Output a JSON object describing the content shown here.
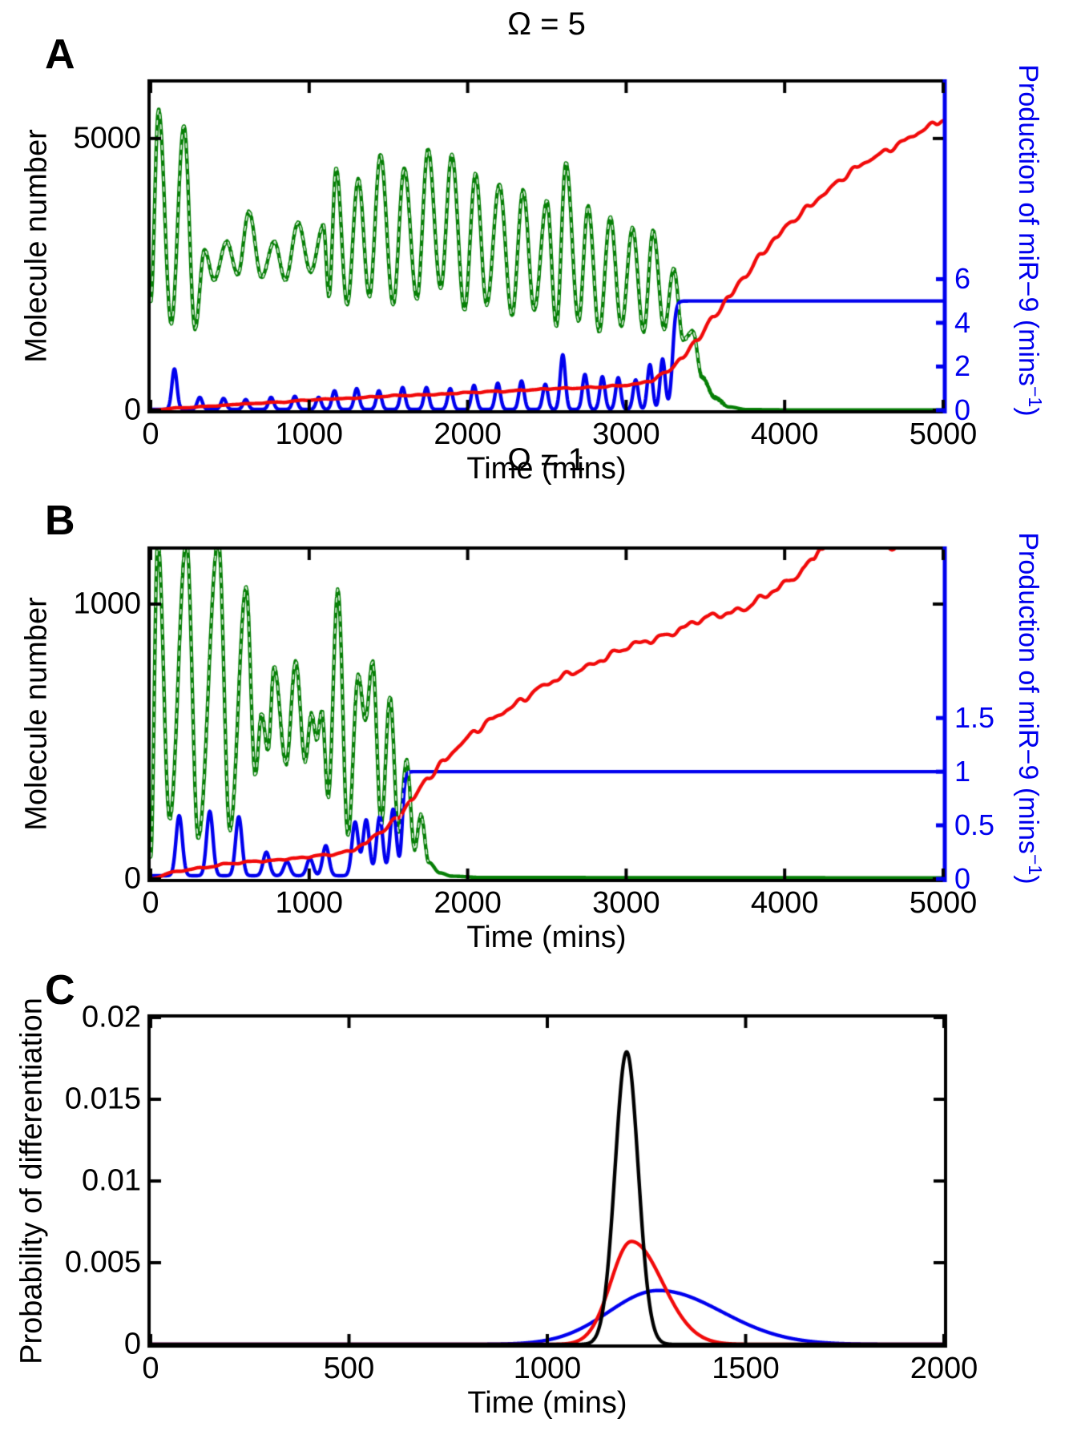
{
  "figure": {
    "titles": {
      "panel_a": "Ω = 5",
      "panel_b": "Ω = 1"
    },
    "panel_letters": {
      "a": "A",
      "b": "B",
      "c": "C"
    },
    "axis_labels": {
      "time": "Time (mins)",
      "molecule_number": "Molecule number",
      "probability": "Probability of differentiation",
      "mir9_base": "Production of miR−9 (mins",
      "mir9_sup": "−1",
      "mir9_close": ")"
    },
    "colors": {
      "green": "#067f06",
      "blue": "#0000ee",
      "red": "#f10a0a",
      "black": "#000000",
      "axis_black": "#000000",
      "right_axis_blue": "#0000ee"
    }
  },
  "chart_data": [
    {
      "id": "A",
      "type": "line",
      "title": "Ω = 5",
      "xlabel": "Time (mins)",
      "ylabel_left": "Molecule number",
      "ylabel_right": "Production of miR−9 (mins−1)",
      "xlim": [
        0,
        5000
      ],
      "ylim_left": [
        0,
        6030
      ],
      "ylim_right": [
        0,
        15
      ],
      "x_ticks": [
        {
          "v": 0,
          "label": "0"
        },
        {
          "v": 1000,
          "label": "1000"
        },
        {
          "v": 2000,
          "label": "2000"
        },
        {
          "v": 3000,
          "label": "3000"
        },
        {
          "v": 4000,
          "label": "4000"
        },
        {
          "v": 5000,
          "label": "5000"
        }
      ],
      "y_ticks_left": [
        {
          "v": 5000,
          "label": "5000"
        },
        {
          "v": 0,
          "label": "0"
        }
      ],
      "y_ticks_right": [
        {
          "v": 6,
          "label": "6"
        },
        {
          "v": 4,
          "label": "4"
        },
        {
          "v": 2,
          "label": "2"
        },
        {
          "v": 0,
          "label": "0"
        }
      ],
      "series": [
        {
          "name": "green",
          "color": "green",
          "axis": "left",
          "style": "smooth",
          "dash_overlay_until": 3470,
          "noise": 20,
          "points": [
            [
              0,
              2000
            ],
            [
              50,
              5530
            ],
            [
              130,
              1600
            ],
            [
              210,
              5230
            ],
            [
              280,
              1500
            ],
            [
              340,
              2950
            ],
            [
              400,
              2400
            ],
            [
              480,
              3100
            ],
            [
              550,
              2500
            ],
            [
              620,
              3650
            ],
            [
              700,
              2450
            ],
            [
              780,
              3100
            ],
            [
              850,
              2400
            ],
            [
              930,
              3450
            ],
            [
              1010,
              2550
            ],
            [
              1090,
              3400
            ],
            [
              1125,
              2100
            ],
            [
              1170,
              4450
            ],
            [
              1240,
              1950
            ],
            [
              1310,
              4250
            ],
            [
              1380,
              2100
            ],
            [
              1450,
              4700
            ],
            [
              1530,
              1950
            ],
            [
              1600,
              4450
            ],
            [
              1680,
              2050
            ],
            [
              1750,
              4800
            ],
            [
              1830,
              2250
            ],
            [
              1900,
              4700
            ],
            [
              1980,
              1850
            ],
            [
              2050,
              4350
            ],
            [
              2120,
              1950
            ],
            [
              2200,
              4150
            ],
            [
              2280,
              1750
            ],
            [
              2350,
              4050
            ],
            [
              2420,
              1850
            ],
            [
              2500,
              3850
            ],
            [
              2560,
              1550
            ],
            [
              2620,
              4550
            ],
            [
              2700,
              1650
            ],
            [
              2760,
              3750
            ],
            [
              2830,
              1450
            ],
            [
              2900,
              3550
            ],
            [
              2970,
              1550
            ],
            [
              3040,
              3350
            ],
            [
              3110,
              1450
            ],
            [
              3170,
              3300
            ],
            [
              3240,
              1500
            ],
            [
              3300,
              2600
            ],
            [
              3360,
              1300
            ],
            [
              3420,
              1450
            ],
            [
              3480,
              600
            ],
            [
              3560,
              230
            ],
            [
              3650,
              60
            ],
            [
              3760,
              12
            ],
            [
              4000,
              6
            ],
            [
              5000,
              5
            ]
          ]
        },
        {
          "name": "blue",
          "color": "blue",
          "axis": "right",
          "style": "spikes_step",
          "baseline": 0.04,
          "spike_sigma": 16,
          "spikes": [
            [
              150,
              1.85
            ],
            [
              310,
              0.55
            ],
            [
              460,
              0.5
            ],
            [
              600,
              0.45
            ],
            [
              760,
              0.55
            ],
            [
              910,
              0.6
            ],
            [
              1060,
              0.55
            ],
            [
              1160,
              0.85
            ],
            [
              1300,
              0.95
            ],
            [
              1440,
              0.85
            ],
            [
              1590,
              1.0
            ],
            [
              1740,
              1.0
            ],
            [
              1890,
              0.95
            ],
            [
              2040,
              1.1
            ],
            [
              2190,
              1.2
            ],
            [
              2340,
              1.3
            ],
            [
              2490,
              1.15
            ],
            [
              2600,
              2.5
            ],
            [
              2740,
              1.6
            ],
            [
              2850,
              1.5
            ],
            [
              2950,
              1.45
            ],
            [
              3060,
              1.35
            ],
            [
              3150,
              2.05
            ],
            [
              3230,
              2.3
            ]
          ],
          "step": {
            "center": 3293,
            "k": 0.1,
            "plateau": 5
          }
        },
        {
          "name": "red",
          "color": "red",
          "axis": "left",
          "style": "smooth",
          "jitter": 30,
          "points": [
            [
              0,
              0
            ],
            [
              200,
              45
            ],
            [
              400,
              80
            ],
            [
              600,
              115
            ],
            [
              800,
              150
            ],
            [
              1000,
              185
            ],
            [
              1200,
              215
            ],
            [
              1400,
              245
            ],
            [
              1600,
              270
            ],
            [
              1800,
              295
            ],
            [
              2000,
              320
            ],
            [
              2200,
              350
            ],
            [
              2400,
              375
            ],
            [
              2600,
              400
            ],
            [
              2800,
              425
            ],
            [
              2950,
              445
            ],
            [
              3050,
              470
            ],
            [
              3150,
              540
            ],
            [
              3250,
              700
            ],
            [
              3350,
              950
            ],
            [
              3450,
              1300
            ],
            [
              3550,
              1700
            ],
            [
              3650,
              2100
            ],
            [
              3750,
              2480
            ],
            [
              3850,
              2850
            ],
            [
              3950,
              3180
            ],
            [
              4050,
              3480
            ],
            [
              4150,
              3750
            ],
            [
              4250,
              4000
            ],
            [
              4350,
              4230
            ],
            [
              4450,
              4440
            ],
            [
              4550,
              4630
            ],
            [
              4650,
              4800
            ],
            [
              4750,
              4960
            ],
            [
              4850,
              5110
            ],
            [
              4950,
              5260
            ],
            [
              5000,
              5330
            ]
          ]
        }
      ]
    },
    {
      "id": "B",
      "type": "line",
      "title": "Ω = 1",
      "xlabel": "Time (mins)",
      "ylabel_left": "Molecule number",
      "ylabel_right": "Production of miR−9 (mins−1)",
      "xlim": [
        0,
        5000
      ],
      "ylim_left": [
        0,
        1198
      ],
      "ylim_right": [
        0,
        3.07
      ],
      "x_ticks": [
        {
          "v": 0,
          "label": "0"
        },
        {
          "v": 1000,
          "label": "1000"
        },
        {
          "v": 2000,
          "label": "2000"
        },
        {
          "v": 3000,
          "label": "3000"
        },
        {
          "v": 4000,
          "label": "4000"
        },
        {
          "v": 5000,
          "label": "5000"
        }
      ],
      "y_ticks_left": [
        {
          "v": 1000,
          "label": "1000"
        },
        {
          "v": 0,
          "label": "0"
        }
      ],
      "y_ticks_right": [
        {
          "v": 1.5,
          "label": "1.5"
        },
        {
          "v": 1,
          "label": "1"
        },
        {
          "v": 0.5,
          "label": "0.5"
        },
        {
          "v": 0,
          "label": "0"
        }
      ],
      "series": [
        {
          "name": "green",
          "color": "green",
          "axis": "left",
          "style": "smooth",
          "dash_overlay_until": 1750,
          "noise": 7,
          "points": [
            [
              0,
              80
            ],
            [
              45,
              1230
            ],
            [
              120,
              220
            ],
            [
              226,
              1230
            ],
            [
              300,
              150
            ],
            [
              427,
              1230
            ],
            [
              500,
              180
            ],
            [
              603,
              1060
            ],
            [
              660,
              380
            ],
            [
              700,
              600
            ],
            [
              740,
              470
            ],
            [
              779,
              770
            ],
            [
              855,
              420
            ],
            [
              915,
              790
            ],
            [
              975,
              430
            ],
            [
              1015,
              600
            ],
            [
              1048,
              510
            ],
            [
              1080,
              610
            ],
            [
              1120,
              300
            ],
            [
              1181,
              1050
            ],
            [
              1245,
              160
            ],
            [
              1310,
              740
            ],
            [
              1355,
              580
            ],
            [
              1400,
              790
            ],
            [
              1455,
              200
            ],
            [
              1510,
              660
            ],
            [
              1565,
              170
            ],
            [
              1615,
              430
            ],
            [
              1665,
              110
            ],
            [
              1705,
              230
            ],
            [
              1755,
              60
            ],
            [
              1825,
              22
            ],
            [
              1900,
              10
            ],
            [
              2100,
              5
            ],
            [
              5000,
              4
            ]
          ]
        },
        {
          "name": "blue",
          "color": "blue",
          "axis": "right",
          "style": "spikes_step",
          "baseline": 0.03,
          "spike_sigma": 20,
          "spikes": [
            [
              180,
              0.56
            ],
            [
              373,
              0.6
            ],
            [
              556,
              0.55
            ],
            [
              730,
              0.22
            ],
            [
              860,
              0.13
            ],
            [
              1005,
              0.16
            ],
            [
              1105,
              0.28
            ],
            [
              1290,
              0.5
            ],
            [
              1360,
              0.52
            ],
            [
              1445,
              0.55
            ],
            [
              1530,
              0.62
            ]
          ],
          "step": {
            "center": 1587,
            "k": 0.12,
            "plateau": 1
          }
        },
        {
          "name": "red",
          "color": "red",
          "axis": "left",
          "style": "smooth",
          "jitter": 9,
          "points": [
            [
              0,
              0
            ],
            [
              150,
              25
            ],
            [
              300,
              40
            ],
            [
              500,
              55
            ],
            [
              700,
              65
            ],
            [
              900,
              75
            ],
            [
              1100,
              85
            ],
            [
              1250,
              100
            ],
            [
              1350,
              130
            ],
            [
              1450,
              170
            ],
            [
              1550,
              215
            ],
            [
              1650,
              290
            ],
            [
              1750,
              370
            ],
            [
              1850,
              430
            ],
            [
              1950,
              485
            ],
            [
              2050,
              535
            ],
            [
              2150,
              580
            ],
            [
              2250,
              620
            ],
            [
              2350,
              655
            ],
            [
              2450,
              690
            ],
            [
              2550,
              720
            ],
            [
              2650,
              750
            ],
            [
              2750,
              775
            ],
            [
              2850,
              800
            ],
            [
              2950,
              825
            ],
            [
              3050,
              850
            ],
            [
              3150,
              870
            ],
            [
              3250,
              890
            ],
            [
              3350,
              910
            ],
            [
              3450,
              935
            ],
            [
              3550,
              955
            ],
            [
              3650,
              970
            ],
            [
              3750,
              990
            ],
            [
              3850,
              1020
            ],
            [
              3950,
              1050
            ],
            [
              4050,
              1090
            ],
            [
              4120,
              1130
            ],
            [
              4180,
              1170
            ],
            [
              4230,
              1215
            ]
          ]
        }
      ]
    },
    {
      "id": "C",
      "type": "line",
      "title": "",
      "xlabel": "Time (mins)",
      "ylabel_left": "Probability of differentiation",
      "xlim": [
        0,
        2000
      ],
      "ylim_left": [
        0,
        0.02
      ],
      "x_ticks": [
        {
          "v": 0,
          "label": "0"
        },
        {
          "v": 500,
          "label": "500"
        },
        {
          "v": 1000,
          "label": "1000"
        },
        {
          "v": 1500,
          "label": "1500"
        },
        {
          "v": 2000,
          "label": "2000"
        }
      ],
      "y_ticks_left": [
        {
          "v": 0.02,
          "label": "0.02"
        },
        {
          "v": 0.015,
          "label": "0.015"
        },
        {
          "v": 0.01,
          "label": "0.01"
        },
        {
          "v": 0.005,
          "label": "0.005"
        },
        {
          "v": 0,
          "label": "0"
        }
      ],
      "series": [
        {
          "name": "blue",
          "color": "blue",
          "axis": "left",
          "style": "skew_gauss",
          "mean": 1280,
          "amp": 0.0033,
          "sigma_left": 125,
          "sigma_right": 160
        },
        {
          "name": "red",
          "color": "red",
          "axis": "left",
          "style": "skew_gauss",
          "mean": 1212,
          "amp": 0.0063,
          "sigma_left": 52,
          "sigma_right": 78
        },
        {
          "name": "black",
          "color": "black",
          "axis": "left",
          "style": "skew_gauss",
          "mean": 1200,
          "amp": 0.0179,
          "sigma_left": 29,
          "sigma_right": 29
        }
      ]
    }
  ]
}
